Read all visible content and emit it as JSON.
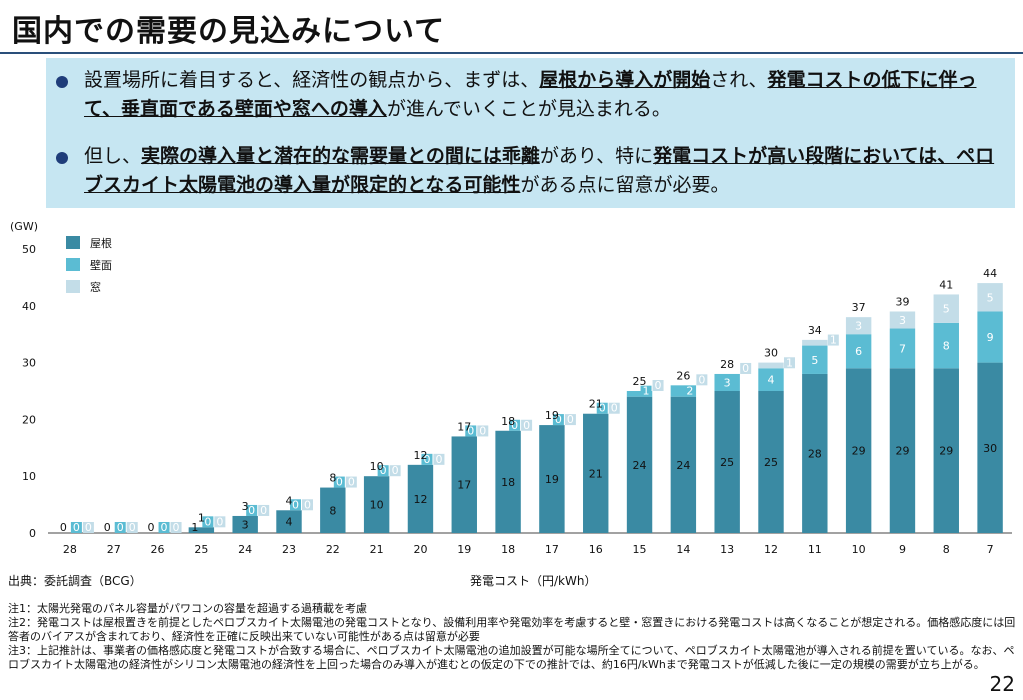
{
  "title": "国内での需要の見込みについて",
  "summary": [
    {
      "parts": [
        {
          "t": "設置場所に着目すると、経済性の観点から、まずは、",
          "b": false
        },
        {
          "t": "屋根から導入が開始",
          "b": true
        },
        {
          "t": "され、",
          "b": false
        },
        {
          "t": "発電コストの低下に伴って、垂直面である壁面や窓への導入",
          "b": true
        },
        {
          "t": "が進んでいくことが見込まれる。",
          "b": false
        }
      ]
    },
    {
      "parts": [
        {
          "t": "但し、",
          "b": false
        },
        {
          "t": "実際の導入量と潜在的な需要量との間には乖離",
          "b": true
        },
        {
          "t": "があり、特に",
          "b": false
        },
        {
          "t": "発電コストが高い段階においては、ペロブスカイト太陽電池の導入量が限定的となる可能性",
          "b": true
        },
        {
          "t": "がある点に留意が必要。",
          "b": false
        }
      ]
    }
  ],
  "chart_data": {
    "type": "bar",
    "stacked": true,
    "unit_label": "(GW)",
    "xlabel": "発電コスト（円/kWh）",
    "ylim": [
      0,
      50
    ],
    "yticks": [
      0,
      10,
      20,
      30,
      40,
      50
    ],
    "categories": [
      "28",
      "27",
      "26",
      "25",
      "24",
      "23",
      "22",
      "21",
      "20",
      "19",
      "18",
      "17",
      "16",
      "15",
      "14",
      "13",
      "12",
      "11",
      "10",
      "9",
      "8",
      "7"
    ],
    "series": [
      {
        "name": "屋根",
        "color": "#3a8aa3",
        "values": [
          0,
          0,
          0,
          1,
          3,
          4,
          8,
          10,
          12,
          17,
          18,
          19,
          21,
          24,
          24,
          25,
          25,
          28,
          29,
          29,
          29,
          30
        ]
      },
      {
        "name": "壁面",
        "color": "#5bbcd3",
        "values": [
          0,
          0,
          0,
          0,
          0,
          0,
          0,
          0,
          0,
          0,
          0,
          0,
          0,
          1,
          2,
          3,
          4,
          5,
          6,
          7,
          8,
          9
        ]
      },
      {
        "name": "窓",
        "color": "#c3dde8",
        "values": [
          0,
          0,
          0,
          0,
          0,
          0,
          0,
          0,
          0,
          0,
          0,
          0,
          0,
          0,
          0,
          0,
          1,
          1,
          3,
          3,
          5,
          5
        ]
      }
    ],
    "totals": [
      0,
      0,
      0,
      1,
      3,
      4,
      8,
      10,
      12,
      17,
      18,
      19,
      21,
      25,
      26,
      28,
      30,
      34,
      37,
      39,
      41,
      44
    ],
    "legend_position": "top-left"
  },
  "source": "出典：委託調査（BCG）",
  "notes": [
    "注1：太陽光発電のパネル容量がパワコンの容量を超過する過積載を考慮",
    "注2：発電コストは屋根置きを前提としたペロブスカイト太陽電池の発電コストとなり、設備利用率や発電効率を考慮すると壁・窓置きにおける発電コストは高くなることが想定される。価格感応度には回答者のバイアスが含まれており、経済性を正確に反映出来ていない可能性がある点は留意が必要",
    "注3：上記推計は、事業者の価格感応度と発電コストが合致する場合に、ペロブスカイト太陽電池の追加設置が可能な場所全てについて、ペロブスカイト太陽電池が導入される前提を置いている。なお、ペロブスカイト太陽電池の経済性がシリコン太陽電池の経済性を上回った場合のみ導入が進むとの仮定の下での推計では、約16円/kWhまで発電コストが低減した後に一定の規模の需要が立ち上がる。"
  ],
  "page_number": "22"
}
